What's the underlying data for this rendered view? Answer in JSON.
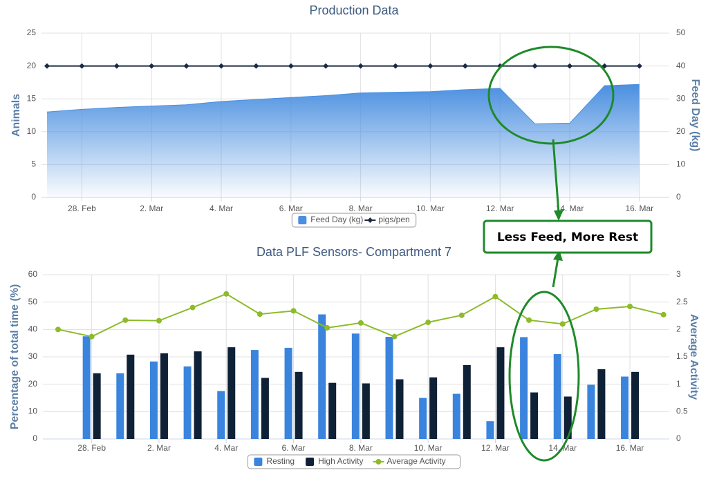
{
  "chart_data": [
    {
      "type": "area",
      "title": "Production Data",
      "ylabel": "Animals",
      "y2label": "Feed Day (kg)",
      "categories": [
        null,
        "28. Feb",
        null,
        "2. Mar",
        null,
        "4. Mar",
        null,
        "6. Mar",
        null,
        "8. Mar",
        null,
        "10. Mar",
        null,
        "12. Mar",
        null,
        "14. Mar",
        null,
        "16. Mar"
      ],
      "ylim": [
        0,
        25
      ],
      "yticks": [
        0,
        5,
        10,
        15,
        20,
        25
      ],
      "y2lim": [
        0,
        50
      ],
      "y2ticks": [
        0,
        10,
        20,
        30,
        40,
        50
      ],
      "grid": true,
      "annotation": "Less Feed, More Rest",
      "series": [
        {
          "name": "Feed Day (kg)",
          "type": "area",
          "axis": "y2",
          "color": "#4a8fe0",
          "values": [
            26,
            26.8,
            27.4,
            27.8,
            28.2,
            29.2,
            29.8,
            30.4,
            31,
            31.8,
            32,
            32.2,
            32.8,
            33.2,
            22.4,
            22.6,
            34,
            34.4
          ]
        },
        {
          "name": "pigs/pen",
          "type": "line",
          "color": "#1a2a44",
          "values": [
            20,
            20,
            20,
            20,
            20,
            20,
            20,
            20,
            20,
            20,
            20,
            20,
            20,
            20,
            20,
            20,
            20,
            20
          ]
        }
      ]
    },
    {
      "type": "bar",
      "title": "Data PLF Sensors- Compartment 7",
      "ylabel": "Percentage of total time (%)",
      "y2label": "Average Activity",
      "categories": [
        null,
        "28. Feb",
        null,
        "2. Mar",
        null,
        "4. Mar",
        null,
        "6. Mar",
        null,
        "8. Mar",
        null,
        "10. Mar",
        null,
        "12. Mar",
        null,
        "14. Mar",
        null,
        "16. Mar",
        null
      ],
      "ylim": [
        0,
        60
      ],
      "yticks": [
        0,
        10,
        20,
        30,
        40,
        50,
        60
      ],
      "y2lim": [
        0,
        3
      ],
      "y2ticks": [
        0,
        0.5,
        1,
        1.5,
        2,
        2.5,
        3
      ],
      "grid": true,
      "series": [
        {
          "name": "Resting",
          "type": "bar",
          "color": "#3a84de",
          "values": [
            null,
            37.5,
            24,
            28.3,
            26.5,
            17.5,
            32.5,
            33.3,
            45.5,
            38.5,
            37.3,
            15,
            16.5,
            6.5,
            37.2,
            31,
            19.8,
            22.8,
            null
          ]
        },
        {
          "name": "High Activity",
          "type": "bar",
          "color": "#0f2136",
          "values": [
            null,
            24,
            30.8,
            31.3,
            32,
            33.5,
            22.3,
            24.5,
            20.5,
            20.3,
            21.8,
            22.5,
            27,
            33.5,
            17,
            15.5,
            25.5,
            24.5,
            null
          ]
        },
        {
          "name": "Average Activity",
          "type": "line",
          "axis": "y2",
          "color": "#8dbb2a",
          "values": [
            2.0,
            1.87,
            2.17,
            2.16,
            2.4,
            2.65,
            2.28,
            2.34,
            2.03,
            2.12,
            1.87,
            2.13,
            2.26,
            2.6,
            2.17,
            2.1,
            2.37,
            2.42,
            2.27
          ]
        }
      ]
    }
  ]
}
